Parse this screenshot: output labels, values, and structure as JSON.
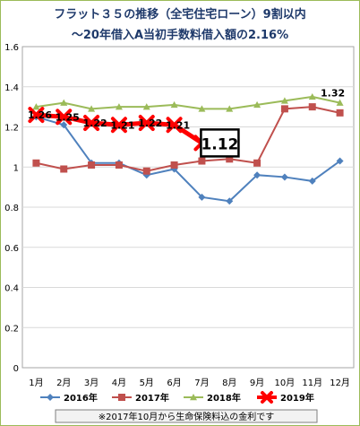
{
  "chart_data": {
    "type": "line",
    "title": "フラット３５の推移（全宅住宅ローン）9割以内",
    "subtitle": "～20年借入A当初手数料借入額の2.16%",
    "categories": [
      "1月",
      "2月",
      "3月",
      "4月",
      "5月",
      "6月",
      "7月",
      "8月",
      "9月",
      "10月",
      "11月",
      "12月"
    ],
    "ylim": [
      0,
      1.6
    ],
    "yticks": [
      "0",
      "0.2",
      "0.4",
      "0.6",
      "0.8",
      "1",
      "1.2",
      "1.4",
      "1.6"
    ],
    "grid": true,
    "legend_position": "bottom",
    "series": [
      {
        "name": "2016年",
        "color": "#4F81BD",
        "marker": "diamond",
        "values": [
          1.25,
          1.21,
          1.02,
          1.02,
          0.96,
          0.99,
          0.85,
          0.83,
          0.96,
          0.95,
          0.93,
          1.03
        ]
      },
      {
        "name": "2017年",
        "color": "#C0504D",
        "marker": "square",
        "values": [
          1.02,
          0.99,
          1.01,
          1.01,
          0.98,
          1.01,
          1.03,
          1.04,
          1.02,
          1.29,
          1.3,
          1.27
        ]
      },
      {
        "name": "2018年",
        "color": "#9BBB59",
        "marker": "triangle",
        "values": [
          1.3,
          1.32,
          1.29,
          1.3,
          1.3,
          1.31,
          1.29,
          1.29,
          1.31,
          1.33,
          1.35,
          1.32
        ]
      },
      {
        "name": "2019年",
        "color": "#FF0000",
        "marker": "x",
        "values": [
          1.26,
          1.25,
          1.22,
          1.21,
          1.22,
          1.21,
          1.12,
          null,
          null,
          null,
          null,
          null
        ]
      }
    ],
    "annotations": [
      {
        "label": "1.26",
        "series": 3,
        "index": 0
      },
      {
        "label": "1.25",
        "series": 3,
        "index": 1
      },
      {
        "label": "1.22",
        "series": 3,
        "index": 2
      },
      {
        "label": "1.21",
        "series": 3,
        "index": 3
      },
      {
        "label": "1.22",
        "series": 3,
        "index": 4
      },
      {
        "label": "1.21",
        "series": 3,
        "index": 5
      },
      {
        "label": "1.32",
        "series": 2,
        "index": 11
      }
    ],
    "callout": {
      "label": "1.12",
      "series": 3,
      "index": 6
    },
    "footnote": "※2017年10月から生命保険料込の金利です"
  }
}
